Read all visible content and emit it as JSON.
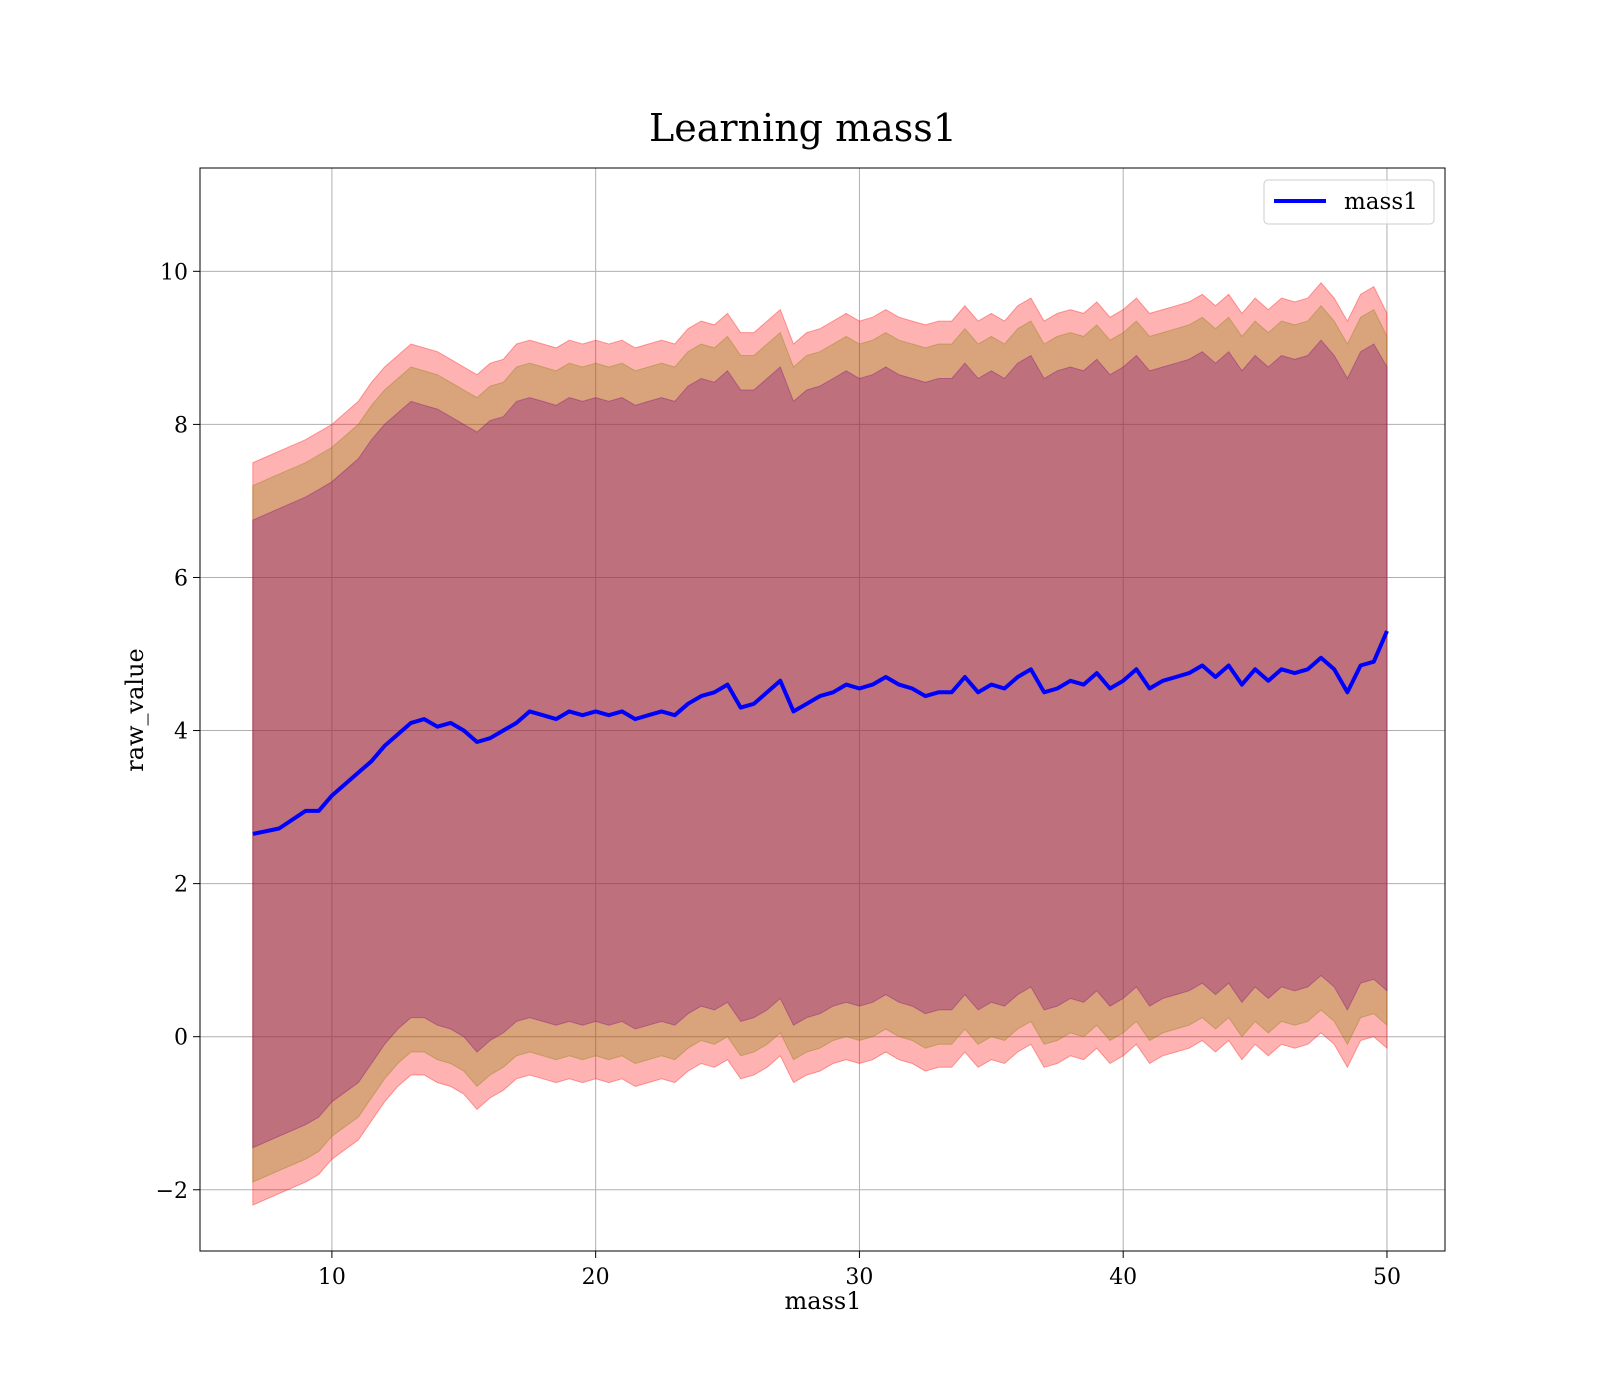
{
  "chart_data": {
    "type": "line",
    "title": "Learning mass1",
    "xlabel": "mass1",
    "ylabel": "raw_value",
    "xlim": [
      5,
      52.2
    ],
    "ylim": [
      -2.8,
      11.35
    ],
    "xticks": [
      10,
      20,
      30,
      40,
      50
    ],
    "yticks": [
      -2,
      0,
      2,
      4,
      6,
      8,
      10
    ],
    "xtick_labels": [
      "10",
      "20",
      "30",
      "40",
      "50"
    ],
    "ytick_labels": [
      "−2",
      "0",
      "2",
      "4",
      "6",
      "8",
      "10"
    ],
    "grid": true,
    "legend_position": "top-right",
    "x": [
      7.0,
      8.0,
      9.0,
      9.5,
      10.0,
      11.0,
      11.5,
      12.0,
      12.5,
      13.0,
      13.5,
      14.0,
      14.5,
      15.0,
      15.5,
      16.0,
      16.5,
      17.0,
      17.5,
      18.0,
      18.5,
      19.0,
      19.5,
      20.0,
      20.5,
      21.0,
      21.5,
      22.0,
      22.5,
      23.0,
      23.5,
      24.0,
      24.5,
      25.0,
      25.5,
      26.0,
      26.5,
      27.0,
      27.5,
      28.0,
      28.5,
      29.0,
      29.5,
      30.0,
      30.5,
      31.0,
      31.5,
      32.0,
      32.5,
      33.0,
      33.5,
      34.0,
      34.5,
      35.0,
      35.5,
      36.0,
      36.5,
      37.0,
      37.5,
      38.0,
      38.5,
      39.0,
      39.5,
      40.0,
      40.5,
      41.0,
      41.5,
      42.0,
      42.5,
      43.0,
      43.5,
      44.0,
      44.5,
      45.0,
      45.5,
      46.0,
      46.5,
      47.0,
      47.5,
      48.0,
      48.5,
      49.0,
      49.5,
      50.0
    ],
    "series": [
      {
        "name": "mass1",
        "color": "#0000ff",
        "values": [
          2.65,
          2.72,
          2.95,
          2.95,
          3.15,
          3.45,
          3.6,
          3.8,
          3.95,
          4.1,
          4.15,
          4.05,
          4.1,
          4.0,
          3.85,
          3.9,
          4.0,
          4.1,
          4.25,
          4.2,
          4.15,
          4.25,
          4.2,
          4.25,
          4.2,
          4.25,
          4.15,
          4.2,
          4.25,
          4.2,
          4.35,
          4.45,
          4.5,
          4.6,
          4.3,
          4.35,
          4.5,
          4.65,
          4.25,
          4.35,
          4.45,
          4.5,
          4.6,
          4.55,
          4.6,
          4.7,
          4.6,
          4.55,
          4.45,
          4.5,
          4.5,
          4.7,
          4.5,
          4.6,
          4.55,
          4.7,
          4.8,
          4.5,
          4.55,
          4.65,
          4.6,
          4.75,
          4.55,
          4.65,
          4.8,
          4.55,
          4.65,
          4.7,
          4.75,
          4.85,
          4.7,
          4.85,
          4.6,
          4.8,
          4.65,
          4.8,
          4.75,
          4.8,
          4.95,
          4.8,
          4.5,
          4.85,
          4.9,
          5.3
        ]
      }
    ],
    "bands": [
      {
        "color": "#ff0000",
        "opacity": 0.3,
        "upper": [
          7.5,
          7.65,
          7.8,
          7.9,
          8.0,
          8.3,
          8.55,
          8.75,
          8.9,
          9.05,
          9.0,
          8.95,
          8.85,
          8.75,
          8.65,
          8.8,
          8.85,
          9.05,
          9.1,
          9.05,
          9.0,
          9.1,
          9.05,
          9.1,
          9.05,
          9.1,
          9.0,
          9.05,
          9.1,
          9.05,
          9.25,
          9.35,
          9.3,
          9.45,
          9.2,
          9.2,
          9.35,
          9.5,
          9.05,
          9.2,
          9.25,
          9.35,
          9.45,
          9.35,
          9.4,
          9.5,
          9.4,
          9.35,
          9.3,
          9.35,
          9.35,
          9.55,
          9.35,
          9.45,
          9.35,
          9.55,
          9.65,
          9.35,
          9.45,
          9.5,
          9.45,
          9.6,
          9.4,
          9.5,
          9.65,
          9.45,
          9.5,
          9.55,
          9.6,
          9.7,
          9.55,
          9.7,
          9.45,
          9.65,
          9.5,
          9.65,
          9.6,
          9.65,
          9.85,
          9.65,
          9.35,
          9.7,
          9.8,
          9.45
        ],
        "lower": [
          -2.2,
          -2.05,
          -1.9,
          -1.8,
          -1.6,
          -1.35,
          -1.1,
          -0.85,
          -0.65,
          -0.5,
          -0.5,
          -0.6,
          -0.65,
          -0.75,
          -0.95,
          -0.8,
          -0.7,
          -0.55,
          -0.5,
          -0.55,
          -0.6,
          -0.55,
          -0.6,
          -0.55,
          -0.6,
          -0.55,
          -0.65,
          -0.6,
          -0.55,
          -0.6,
          -0.45,
          -0.35,
          -0.4,
          -0.3,
          -0.55,
          -0.5,
          -0.4,
          -0.25,
          -0.6,
          -0.5,
          -0.45,
          -0.35,
          -0.3,
          -0.35,
          -0.3,
          -0.2,
          -0.3,
          -0.35,
          -0.45,
          -0.4,
          -0.4,
          -0.2,
          -0.4,
          -0.3,
          -0.35,
          -0.2,
          -0.1,
          -0.4,
          -0.35,
          -0.25,
          -0.3,
          -0.15,
          -0.35,
          -0.25,
          -0.1,
          -0.35,
          -0.25,
          -0.2,
          -0.15,
          -0.05,
          -0.2,
          -0.05,
          -0.3,
          -0.1,
          -0.25,
          -0.1,
          -0.15,
          -0.1,
          0.05,
          -0.1,
          -0.4,
          -0.05,
          0.0,
          -0.15
        ]
      },
      {
        "color": "#808000",
        "opacity": 0.3,
        "upper": [
          7.2,
          7.35,
          7.5,
          7.6,
          7.7,
          8.0,
          8.25,
          8.45,
          8.6,
          8.75,
          8.7,
          8.65,
          8.55,
          8.45,
          8.35,
          8.5,
          8.55,
          8.75,
          8.8,
          8.75,
          8.7,
          8.8,
          8.75,
          8.8,
          8.75,
          8.8,
          8.7,
          8.75,
          8.8,
          8.75,
          8.95,
          9.05,
          9.0,
          9.15,
          8.9,
          8.9,
          9.05,
          9.2,
          8.75,
          8.9,
          8.95,
          9.05,
          9.15,
          9.05,
          9.1,
          9.2,
          9.1,
          9.05,
          9.0,
          9.05,
          9.05,
          9.25,
          9.05,
          9.15,
          9.05,
          9.25,
          9.35,
          9.05,
          9.15,
          9.2,
          9.15,
          9.3,
          9.1,
          9.2,
          9.35,
          9.15,
          9.2,
          9.25,
          9.3,
          9.4,
          9.25,
          9.4,
          9.15,
          9.35,
          9.2,
          9.35,
          9.3,
          9.35,
          9.55,
          9.35,
          9.05,
          9.4,
          9.5,
          9.15
        ],
        "lower": [
          -1.9,
          -1.75,
          -1.6,
          -1.5,
          -1.3,
          -1.05,
          -0.8,
          -0.55,
          -0.35,
          -0.2,
          -0.2,
          -0.3,
          -0.35,
          -0.45,
          -0.65,
          -0.5,
          -0.4,
          -0.25,
          -0.2,
          -0.25,
          -0.3,
          -0.25,
          -0.3,
          -0.25,
          -0.3,
          -0.25,
          -0.35,
          -0.3,
          -0.25,
          -0.3,
          -0.15,
          -0.05,
          -0.1,
          0.0,
          -0.25,
          -0.2,
          -0.1,
          0.05,
          -0.3,
          -0.2,
          -0.15,
          -0.05,
          0.0,
          -0.05,
          0.0,
          0.1,
          0.0,
          -0.05,
          -0.15,
          -0.1,
          -0.1,
          0.1,
          -0.1,
          0.0,
          -0.05,
          0.1,
          0.2,
          -0.1,
          -0.05,
          0.05,
          0.0,
          0.15,
          -0.05,
          0.05,
          0.2,
          -0.05,
          0.05,
          0.1,
          0.15,
          0.25,
          0.1,
          0.25,
          0.0,
          0.2,
          0.05,
          0.2,
          0.15,
          0.2,
          0.35,
          0.2,
          -0.1,
          0.25,
          0.3,
          0.15
        ]
      },
      {
        "color": "#800080",
        "opacity": 0.3,
        "upper": [
          6.75,
          6.9,
          7.05,
          7.15,
          7.25,
          7.55,
          7.8,
          8.0,
          8.15,
          8.3,
          8.25,
          8.2,
          8.1,
          8.0,
          7.9,
          8.05,
          8.1,
          8.3,
          8.35,
          8.3,
          8.25,
          8.35,
          8.3,
          8.35,
          8.3,
          8.35,
          8.25,
          8.3,
          8.35,
          8.3,
          8.5,
          8.6,
          8.55,
          8.7,
          8.45,
          8.45,
          8.6,
          8.75,
          8.3,
          8.45,
          8.5,
          8.6,
          8.7,
          8.6,
          8.65,
          8.75,
          8.65,
          8.6,
          8.55,
          8.6,
          8.6,
          8.8,
          8.6,
          8.7,
          8.6,
          8.8,
          8.9,
          8.6,
          8.7,
          8.75,
          8.7,
          8.85,
          8.65,
          8.75,
          8.9,
          8.7,
          8.75,
          8.8,
          8.85,
          8.95,
          8.8,
          8.95,
          8.7,
          8.9,
          8.75,
          8.9,
          8.85,
          8.9,
          9.1,
          8.9,
          8.6,
          8.95,
          9.05,
          8.75
        ],
        "lower": [
          -1.45,
          -1.3,
          -1.15,
          -1.05,
          -0.85,
          -0.6,
          -0.35,
          -0.1,
          0.1,
          0.25,
          0.25,
          0.15,
          0.1,
          0.0,
          -0.2,
          -0.05,
          0.05,
          0.2,
          0.25,
          0.2,
          0.15,
          0.2,
          0.15,
          0.2,
          0.15,
          0.2,
          0.1,
          0.15,
          0.2,
          0.15,
          0.3,
          0.4,
          0.35,
          0.45,
          0.2,
          0.25,
          0.35,
          0.5,
          0.15,
          0.25,
          0.3,
          0.4,
          0.45,
          0.4,
          0.45,
          0.55,
          0.45,
          0.4,
          0.3,
          0.35,
          0.35,
          0.55,
          0.35,
          0.45,
          0.4,
          0.55,
          0.65,
          0.35,
          0.4,
          0.5,
          0.45,
          0.6,
          0.4,
          0.5,
          0.65,
          0.4,
          0.5,
          0.55,
          0.6,
          0.7,
          0.55,
          0.7,
          0.45,
          0.65,
          0.5,
          0.65,
          0.6,
          0.65,
          0.8,
          0.65,
          0.35,
          0.7,
          0.75,
          0.6
        ]
      }
    ]
  }
}
